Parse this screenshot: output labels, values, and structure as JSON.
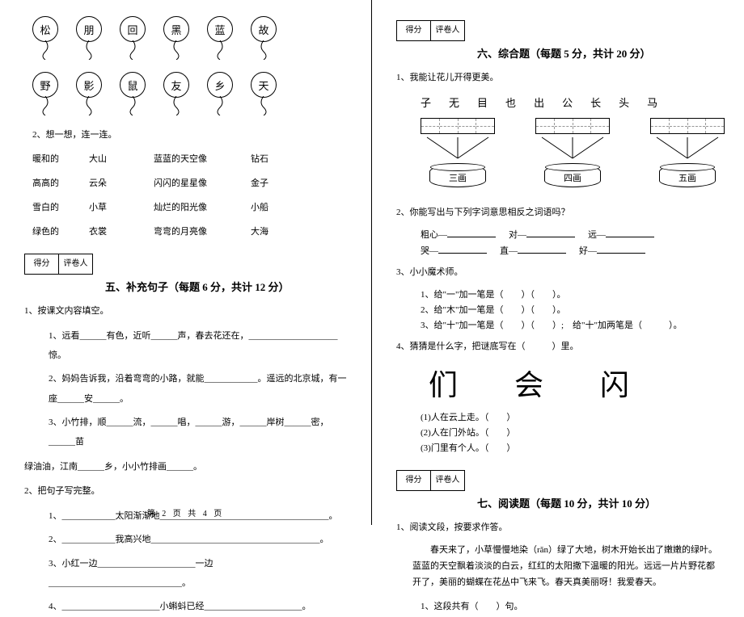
{
  "balloons_row1": [
    "松",
    "朋",
    "回",
    "黑",
    "蓝",
    "故"
  ],
  "balloons_row2": [
    "野",
    "影",
    "鼠",
    "友",
    "乡",
    "天"
  ],
  "q2_label": "2、想一想，连一连。",
  "match": [
    [
      "暖和的",
      "大山",
      "蓝蓝的天空像",
      "钻石"
    ],
    [
      "高高的",
      "云朵",
      "闪闪的星星像",
      "金子"
    ],
    [
      "雪白的",
      "小草",
      "灿烂的阳光像",
      "小船"
    ],
    [
      "绿色的",
      "衣裳",
      "弯弯的月亮像",
      "大海"
    ]
  ],
  "score_labels": {
    "score": "得分",
    "reviewer": "评卷人"
  },
  "section5": {
    "title": "五、补充句子（每题 6 分，共计 12 分）"
  },
  "s5_q1": "1、按课文内容填空。",
  "s5_q1_1": "1、远看______有色，近听______声，春去花还在，____________________惊。",
  "s5_q1_2": "2、妈妈告诉我，沿着弯弯的小路，就能____________。遥远的北京城，有一座______安______。",
  "s5_q1_3a": "3、小竹排，顺______流，______唱，______游，______岸树______密，______苗",
  "s5_q1_3b": "绿油油，江南______乡，小小竹排画______。",
  "s5_q2": "2、把句子写完整。",
  "s5_q2_1": "1、____________太阳渐渐地______________________________________。",
  "s5_q2_2": "2、____________我高兴地______________________________________。",
  "s5_q2_3": "3、小红一边______________________一边______________________________。",
  "s5_q2_4": "4、______________________小蝌蚪已经______________________。",
  "section6": {
    "title": "六、综合题（每题 5 分，共计 20 分）"
  },
  "s6_q1": "1、我能让花儿开得更美。",
  "chars": [
    "子",
    "无",
    "目",
    "也",
    "出",
    "公",
    "长",
    "头",
    "马"
  ],
  "bins": [
    "三画",
    "四画",
    "五画"
  ],
  "s6_q2": "2、你能写出与下列字词意思相反之词语吗？",
  "antonyms": [
    [
      "粗心—",
      "对—",
      "远—"
    ],
    [
      "哭—",
      "直—",
      "好—"
    ]
  ],
  "s6_q3": "3、小小魔术师。",
  "s6_q3_1": "1、给\"一\"加一笔是（　　）（　　）。",
  "s6_q3_2": "2、给\"木\"加一笔是（　　）（　　）。",
  "s6_q3_3": "3、给\"十\"加一笔是（　　）（　　）;　给\"十\"加两笔是（　　　）。",
  "s6_q4": "4、猜猜是什么字，把谜底写在（　　　）里。",
  "big_chars": [
    "们",
    "会",
    "闪"
  ],
  "riddles": [
    "(1)人在云上走。（　　）",
    "(2)人在门外站。（　　）",
    "(3)门里有个人。（　　）"
  ],
  "section7": {
    "title": "七、阅读题（每题 10 分，共计 10 分）"
  },
  "s7_q1": "1、阅读文段，按要求作答。",
  "reading": "春天来了，小草慢慢地染（rǎn）绿了大地，树木开始长出了嫩嫩的绿叶。蓝蓝的天空飘着淡淡的白云，红红的太阳撒下温暖的阳光。远远一片片野花都开了，美丽的蝴蝶在花丛中飞来飞。春天真美丽呀！我爱春天。",
  "s7_q1_1": "1、这段共有（　　）句。",
  "footer": "第  2  页  共  4  页"
}
